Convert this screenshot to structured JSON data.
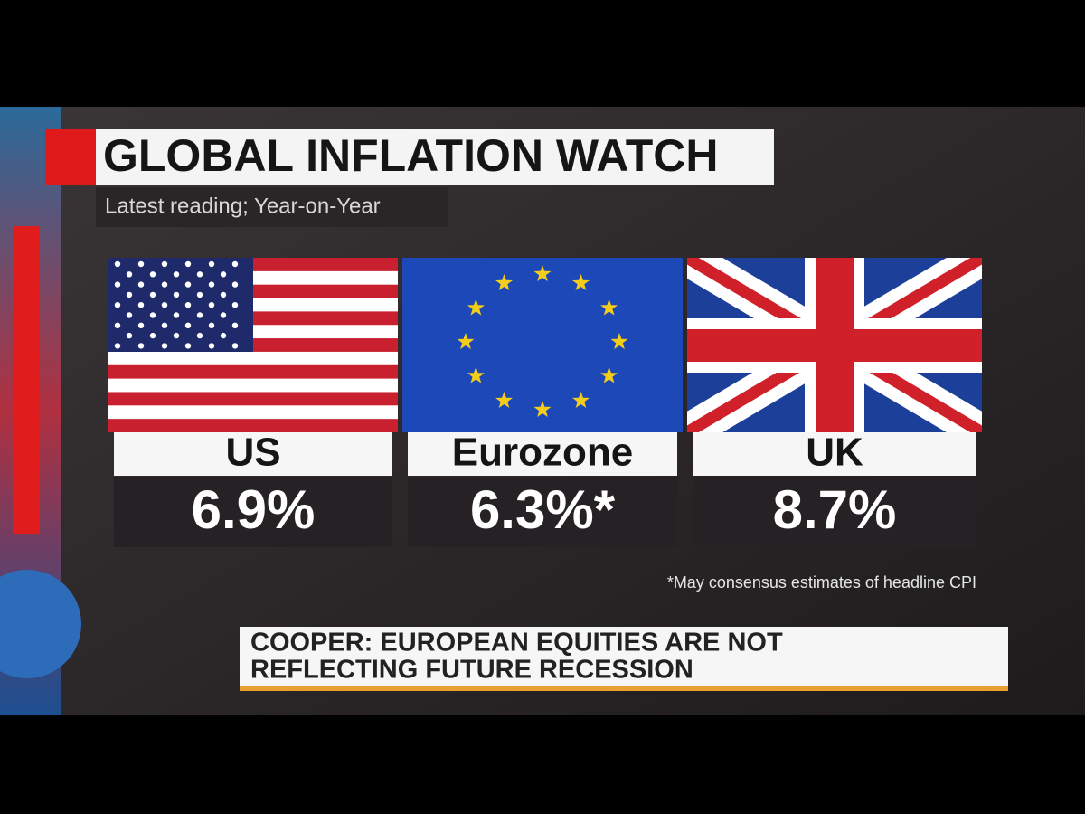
{
  "header": {
    "title": "GLOBAL INFLATION WATCH",
    "subtitle": "Latest reading; Year-on-Year"
  },
  "panels": [
    {
      "label": "US",
      "value": "6.9%"
    },
    {
      "label": "Eurozone",
      "value": "6.3%*"
    },
    {
      "label": "UK",
      "value": "8.7%"
    }
  ],
  "footnote": "*May consensus estimates of headline CPI",
  "ticker": {
    "lines": [
      "COOPER: EUROPEAN EQUITIES ARE NOT",
      "REFLECTING FUTURE RECESSION"
    ]
  }
}
